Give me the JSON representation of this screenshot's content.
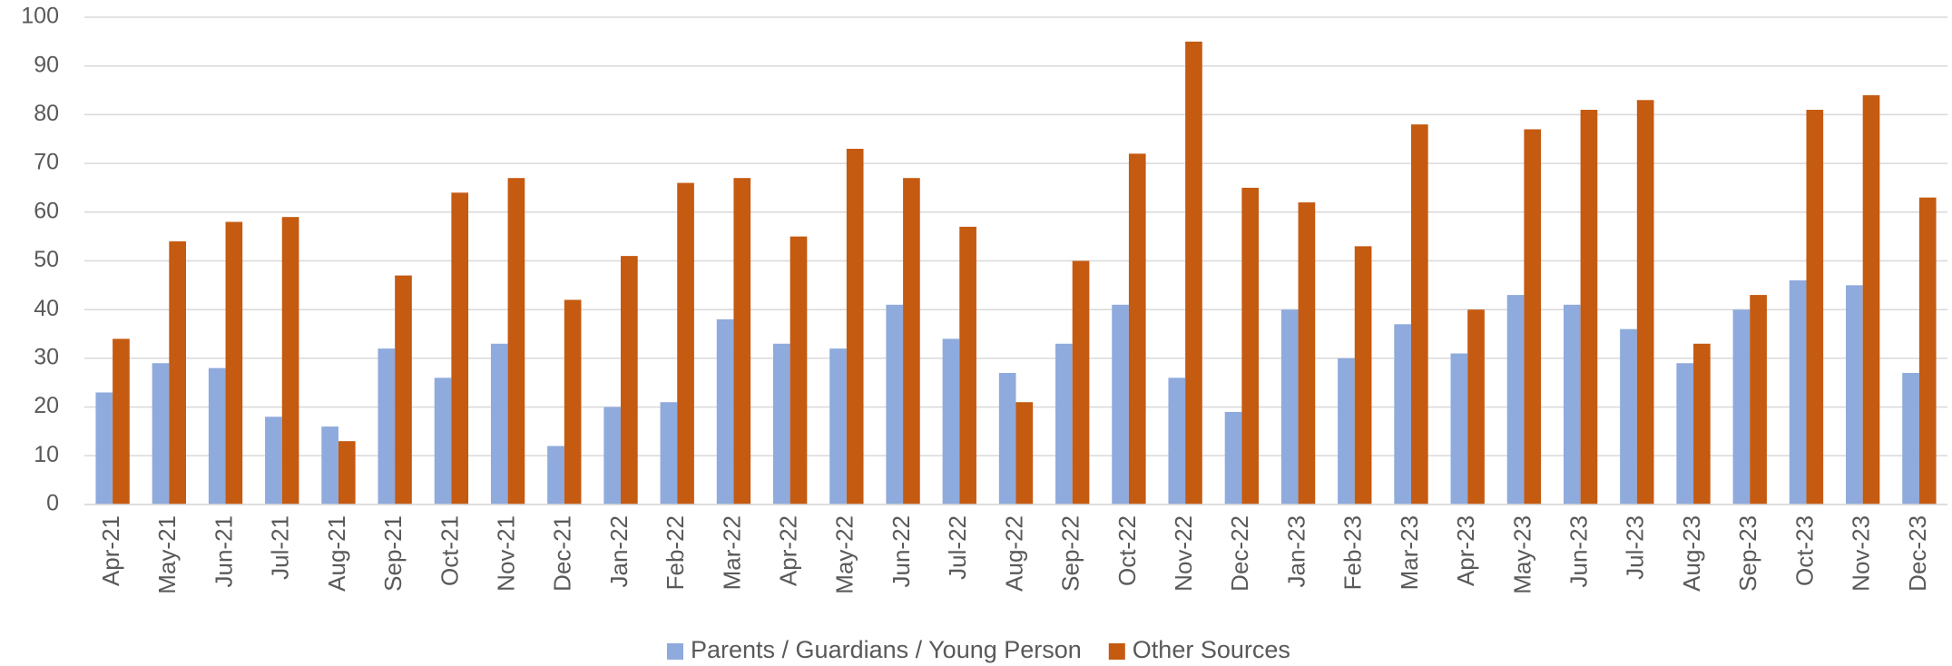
{
  "chart_data": {
    "type": "bar",
    "categories": [
      "Apr-21",
      "May-21",
      "Jun-21",
      "Jul-21",
      "Aug-21",
      "Sep-21",
      "Oct-21",
      "Nov-21",
      "Dec-21",
      "Jan-22",
      "Feb-22",
      "Mar-22",
      "Apr-22",
      "May-22",
      "Jun-22",
      "Jul-22",
      "Aug-22",
      "Sep-22",
      "Oct-22",
      "Nov-22",
      "Dec-22",
      "Jan-23",
      "Feb-23",
      "Mar-23",
      "Apr-23",
      "May-23",
      "Jun-23",
      "Jul-23",
      "Aug-23",
      "Sep-23",
      "Oct-23",
      "Nov-23",
      "Dec-23"
    ],
    "series": [
      {
        "name": "Parents / Guardians / Young Person",
        "color": "#8faadc",
        "values": [
          23,
          29,
          28,
          18,
          16,
          32,
          26,
          33,
          12,
          20,
          21,
          38,
          33,
          32,
          41,
          34,
          27,
          33,
          41,
          26,
          19,
          40,
          30,
          37,
          31,
          43,
          41,
          36,
          29,
          40,
          46,
          45,
          27
        ]
      },
      {
        "name": "Other Sources",
        "color": "#c55a11",
        "values": [
          34,
          54,
          58,
          59,
          13,
          47,
          64,
          67,
          42,
          51,
          66,
          67,
          55,
          73,
          67,
          57,
          21,
          50,
          72,
          95,
          65,
          62,
          53,
          78,
          40,
          77,
          81,
          83,
          33,
          43,
          81,
          84,
          63
        ]
      }
    ],
    "ylim": [
      0,
      100
    ],
    "yticks": [
      0,
      10,
      20,
      30,
      40,
      50,
      60,
      70,
      80,
      90,
      100
    ],
    "grid": true,
    "legend": "bottom"
  }
}
